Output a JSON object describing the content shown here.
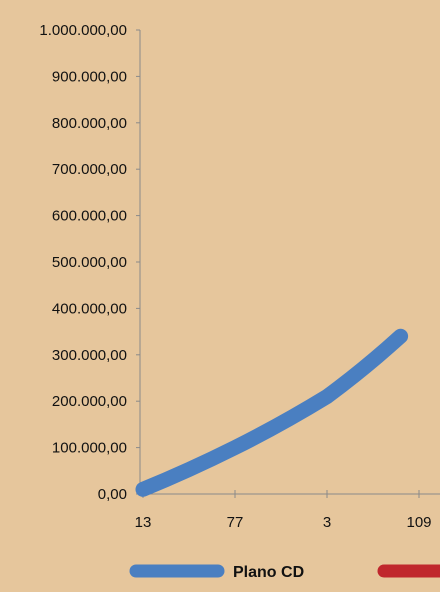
{
  "chart_data": {
    "type": "line",
    "title": "",
    "xlabel": "",
    "ylabel": "",
    "categories": [
      "13",
      "77",
      "3",
      "109"
    ],
    "ylim": [
      0,
      1000000
    ],
    "y_ticks": [
      "0,00",
      "100.000,00",
      "200.000,00",
      "300.000,00",
      "400.000,00",
      "500.000,00",
      "600.000,00",
      "700.000,00",
      "800.000,00",
      "900.000,00",
      "1.000.000,00"
    ],
    "grid": false,
    "legend_position": "bottom",
    "series": [
      {
        "name": "",
        "color": "#c0272d",
        "points": [
          [
            0,
            10000
          ],
          [
            1,
            108000
          ],
          [
            2,
            215000
          ],
          [
            2.8,
            335000
          ]
        ]
      },
      {
        "name": "Plano CD",
        "color": "#4a7fc1",
        "points": [
          [
            0,
            10000
          ],
          [
            1,
            100000
          ],
          [
            2,
            210000
          ],
          [
            2.8,
            340000
          ]
        ]
      }
    ]
  }
}
